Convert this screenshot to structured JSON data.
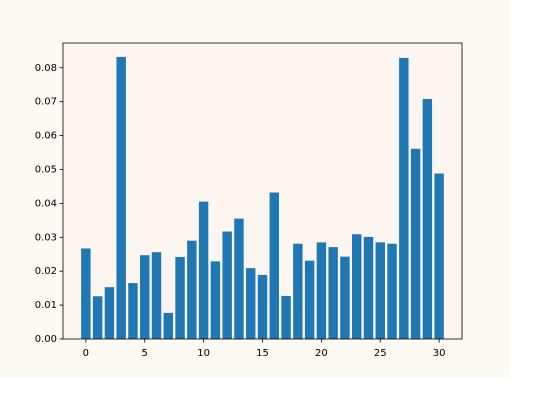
{
  "chart_data": {
    "type": "bar",
    "x": [
      0,
      1,
      2,
      3,
      4,
      5,
      6,
      7,
      8,
      9,
      10,
      11,
      12,
      13,
      14,
      15,
      16,
      17,
      18,
      19,
      20,
      21,
      22,
      23,
      24,
      25,
      26,
      27,
      28,
      29,
      30
    ],
    "values": [
      0.0267,
      0.0126,
      0.0153,
      0.0832,
      0.0165,
      0.0247,
      0.0256,
      0.0077,
      0.0242,
      0.029,
      0.0405,
      0.0229,
      0.0317,
      0.0355,
      0.0209,
      0.0189,
      0.0432,
      0.0127,
      0.0281,
      0.0231,
      0.0285,
      0.0271,
      0.0243,
      0.0309,
      0.0301,
      0.0285,
      0.0281,
      0.0829,
      0.0561,
      0.0708,
      0.0488
    ],
    "color": "#1f77b4",
    "xlim": [
      -1.94,
      31.94
    ],
    "xticks": [
      0,
      5,
      10,
      15,
      20,
      25,
      30
    ],
    "ylim": [
      0,
      0.0873
    ],
    "yticks": [
      {
        "value": 0,
        "label": "0.00"
      },
      {
        "value": 0.01,
        "label": "0.01"
      },
      {
        "value": 0.02,
        "label": "0.02"
      },
      {
        "value": 0.03,
        "label": "0.03"
      },
      {
        "value": 0.04,
        "label": "0.04"
      },
      {
        "value": 0.05,
        "label": "0.05"
      },
      {
        "value": 0.06,
        "label": "0.06"
      },
      {
        "value": 0.07,
        "label": "0.07"
      },
      {
        "value": 0.08,
        "label": "0.08"
      }
    ],
    "grid": false
  }
}
